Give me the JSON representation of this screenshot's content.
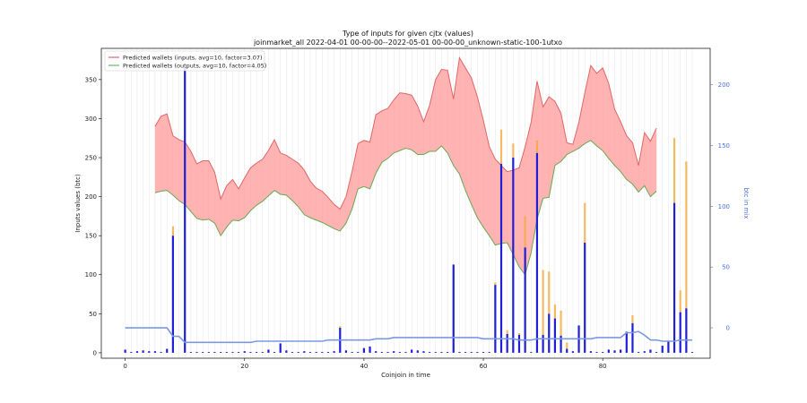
{
  "chart_data": {
    "type": "bar",
    "title": "Type of inputs for given cjtx (values)",
    "subtitle": "joinmarket_all 2022-04-01 00-00-00--2022-05-01 00-00-00_unknown-static-100-1utxo",
    "xlabel": "Coinjoin in time",
    "ylabel": "Inputs values (btc)",
    "y2label": "btc in mix",
    "xlim": [
      -4,
      98
    ],
    "ylim": [
      -7,
      390
    ],
    "y2lim": [
      -25,
      230
    ],
    "x_ticks": [
      0,
      20,
      40,
      60,
      80
    ],
    "y_ticks": [
      0,
      50,
      100,
      150,
      200,
      250,
      300,
      350
    ],
    "y2_ticks": [
      0,
      50,
      100,
      150,
      200
    ],
    "grid": "vertical",
    "legend_position": "top-left",
    "legend": [
      {
        "label": "Predicted wallets (inputs, avg=10, factor=3.07)",
        "color": "#e06666"
      },
      {
        "label": "Predicted wallets (outputs, avg=10, factor=4.05)",
        "color": "#66bb66"
      }
    ],
    "colors": {
      "inputs_line": "#e06666",
      "outputs_line": "#6aa84f",
      "band_fill": "#ff9999",
      "bars": "#1f1fd6",
      "bars_top": "#f4a93b",
      "mix_line": "#7b98e3"
    },
    "band": {
      "x": [
        5,
        6,
        7,
        8,
        9,
        10,
        11,
        12,
        13,
        14,
        15,
        16,
        17,
        18,
        19,
        20,
        21,
        22,
        23,
        24,
        25,
        26,
        27,
        28,
        29,
        30,
        31,
        32,
        33,
        34,
        35,
        36,
        37,
        38,
        39,
        40,
        41,
        42,
        43,
        44,
        45,
        46,
        47,
        48,
        49,
        50,
        51,
        52,
        53,
        54,
        55,
        56,
        57,
        58,
        59,
        60,
        61,
        62,
        63,
        64,
        65,
        66,
        67,
        68,
        69,
        70,
        71,
        72,
        73,
        74,
        75,
        76,
        77,
        78,
        79,
        80,
        81,
        82,
        83,
        84,
        85,
        86,
        87,
        88,
        89
      ],
      "inputs": [
        290,
        303,
        306,
        278,
        273,
        270,
        258,
        242,
        246,
        246,
        231,
        197,
        214,
        222,
        210,
        224,
        237,
        243,
        248,
        259,
        273,
        256,
        253,
        248,
        243,
        234,
        220,
        211,
        207,
        199,
        190,
        184,
        200,
        232,
        268,
        272,
        270,
        305,
        310,
        313,
        324,
        333,
        332,
        330,
        316,
        296,
        317,
        350,
        363,
        362,
        325,
        378,
        365,
        352,
        328,
        298,
        264,
        248,
        240,
        232,
        234,
        237,
        264,
        295,
        348,
        315,
        328,
        322,
        307,
        269,
        267,
        295,
        333,
        368,
        358,
        365,
        345,
        312,
        296,
        278,
        269,
        240,
        282,
        271,
        288,
        290,
        299
      ],
      "outputs": [
        205,
        207,
        208,
        202,
        195,
        190,
        181,
        172,
        170,
        171,
        166,
        150,
        161,
        170,
        169,
        173,
        182,
        189,
        194,
        201,
        208,
        203,
        202,
        195,
        187,
        177,
        173,
        170,
        167,
        163,
        159,
        156,
        166,
        184,
        210,
        213,
        210,
        230,
        244,
        249,
        256,
        259,
        262,
        260,
        254,
        254,
        258,
        258,
        265,
        256,
        240,
        229,
        208,
        190,
        173,
        161,
        150,
        138,
        140,
        141,
        126,
        110,
        100,
        128,
        171,
        198,
        199,
        240,
        245,
        254,
        258,
        262,
        268,
        272,
        265,
        259,
        249,
        240,
        232,
        222,
        216,
        206,
        214,
        200,
        207,
        210,
        212
      ]
    },
    "bars": {
      "x": [
        0,
        1,
        2,
        3,
        4,
        5,
        6,
        7,
        8,
        9,
        10,
        11,
        12,
        13,
        14,
        15,
        16,
        17,
        18,
        19,
        20,
        21,
        22,
        23,
        24,
        25,
        26,
        27,
        28,
        29,
        30,
        31,
        32,
        33,
        34,
        35,
        36,
        37,
        38,
        39,
        40,
        41,
        42,
        43,
        44,
        45,
        46,
        47,
        48,
        49,
        50,
        51,
        52,
        53,
        54,
        55,
        56,
        57,
        58,
        59,
        60,
        61,
        62,
        63,
        64,
        65,
        66,
        67,
        68,
        69,
        70,
        71,
        72,
        73,
        74,
        75,
        76,
        77,
        78,
        79,
        80,
        81,
        82,
        83,
        84,
        85,
        86,
        87,
        88,
        89,
        90,
        91,
        92,
        93,
        94,
        95
      ],
      "values": [
        4,
        1,
        2,
        3,
        2,
        2,
        1,
        5,
        150,
        0,
        365,
        1,
        1,
        1,
        1,
        1,
        1,
        1,
        1,
        1,
        2,
        1,
        1,
        1,
        4,
        1,
        12,
        3,
        1,
        1,
        2,
        1,
        1,
        1,
        1,
        2,
        32,
        3,
        1,
        1,
        6,
        8,
        2,
        1,
        1,
        2,
        1,
        1,
        4,
        3,
        2,
        1,
        1,
        1,
        1,
        113,
        1,
        1,
        1,
        1,
        1,
        1,
        87,
        242,
        24,
        250,
        23,
        135,
        1,
        256,
        23,
        50,
        44,
        22,
        5,
        2,
        35,
        141,
        2,
        1,
        1,
        4,
        3,
        4,
        27,
        38,
        1,
        2,
        4,
        1,
        9,
        15,
        192,
        52,
        57,
        1
      ],
      "top_values": [
        0,
        0,
        0,
        0,
        0,
        0,
        0,
        0,
        12,
        0,
        0,
        0,
        0,
        0,
        0,
        0,
        0,
        0,
        0,
        0,
        0,
        0,
        0,
        0,
        0,
        0,
        0,
        0,
        0,
        0,
        0,
        0,
        0,
        0,
        0,
        0,
        2,
        0,
        0,
        0,
        0,
        0,
        0,
        0,
        0,
        0,
        0,
        0,
        0,
        0,
        0,
        0,
        0,
        0,
        0,
        0,
        0,
        0,
        0,
        0,
        0,
        0,
        3,
        44,
        5,
        18,
        2,
        40,
        0,
        16,
        83,
        54,
        18,
        32,
        8,
        0,
        0,
        51,
        0,
        0,
        0,
        0,
        0,
        0,
        0,
        10,
        0,
        0,
        0,
        0,
        0,
        0,
        83,
        28,
        188,
        0
      ]
    },
    "mix_line": {
      "x": [
        0,
        1,
        2,
        3,
        4,
        5,
        6,
        7,
        8,
        9,
        10,
        11,
        12,
        13,
        14,
        15,
        16,
        17,
        18,
        19,
        20,
        21,
        22,
        23,
        24,
        25,
        26,
        27,
        28,
        29,
        30,
        31,
        32,
        33,
        34,
        35,
        36,
        37,
        38,
        39,
        40,
        41,
        42,
        43,
        44,
        45,
        46,
        47,
        48,
        49,
        50,
        51,
        52,
        53,
        54,
        55,
        56,
        57,
        58,
        59,
        60,
        61,
        62,
        63,
        64,
        65,
        66,
        67,
        68,
        69,
        70,
        71,
        72,
        73,
        74,
        75,
        76,
        77,
        78,
        79,
        80,
        81,
        82,
        83,
        84,
        85,
        86,
        87,
        88,
        89,
        90,
        91,
        92,
        93,
        94,
        95
      ],
      "values": [
        0,
        0,
        0,
        0,
        0,
        0,
        0,
        0,
        -7,
        -7,
        -12,
        -12,
        -12,
        -12,
        -12,
        -12,
        -12,
        -12,
        -12,
        -12,
        -12,
        -12,
        -11,
        -11,
        -11,
        -11,
        -11,
        -11,
        -11,
        -11,
        -11,
        -11,
        -11,
        -11,
        -10,
        -10,
        -10,
        -10,
        -10,
        -10,
        -10,
        -10,
        -9,
        -9,
        -9,
        -8,
        -8,
        -8,
        -8,
        -8,
        -8,
        -8,
        -8,
        -8,
        -8,
        -8,
        -8,
        -8,
        -8,
        -8,
        -9,
        -9,
        -9,
        -9,
        -9,
        -9,
        -10,
        -10,
        -10,
        -9,
        -9,
        -9,
        -9,
        -9,
        -9,
        -9,
        -9,
        -9,
        -9,
        -8,
        -8,
        -8,
        -8,
        -8,
        -4,
        -4,
        -3,
        -6,
        -10,
        -10,
        -11,
        -11,
        -11,
        -10,
        -10,
        -10
      ]
    }
  }
}
